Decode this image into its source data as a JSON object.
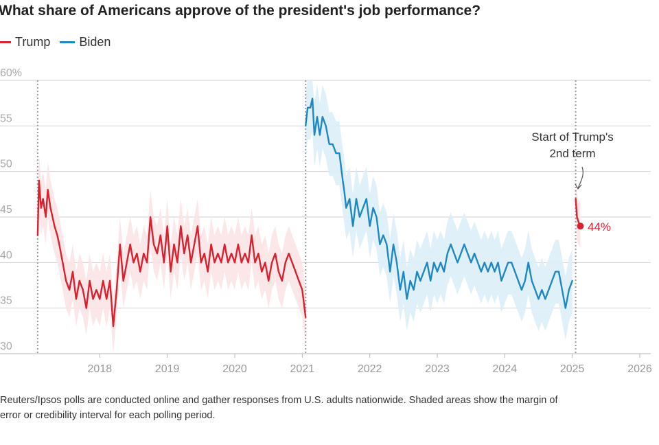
{
  "title": "What share of Americans approve of the president's job performance?",
  "legend": [
    {
      "label": "Trump",
      "color": "#d9202f"
    },
    {
      "label": "Biden",
      "color": "#1f88c2"
    }
  ],
  "footnote": {
    "line1": "Reuters/Ipsos polls are conducted online and gather responses from U.S. adults nationwide. Shaded areas show the margin of",
    "line2": "error or credibility interval for each polling period."
  },
  "annotation": {
    "line1": "Start of Trump's",
    "line2": "2nd term",
    "end_label": "44%"
  },
  "chart_data": {
    "type": "line",
    "title": "What share of Americans approve of the president's job performance?",
    "xlabel": "",
    "ylabel": "",
    "xlim": [
      2017.0,
      2026.0
    ],
    "ylim": [
      30,
      60
    ],
    "y_ticks": [
      60,
      55,
      50,
      45,
      40,
      35,
      30
    ],
    "y_tick_labels": [
      "60%",
      "55",
      "50",
      "45",
      "40",
      "35",
      "30"
    ],
    "x_ticks": [
      2018,
      2019,
      2020,
      2021,
      2022,
      2023,
      2024,
      2025,
      2026
    ],
    "x_tick_labels": [
      "2018",
      "2019",
      "2020",
      "2021",
      "2022",
      "2023",
      "2024",
      "2025",
      "2026"
    ],
    "vertical_markers": [
      2017.08,
      2021.05,
      2025.05
    ],
    "grid": true,
    "series": [
      {
        "name": "Trump",
        "color": "#d9202f",
        "band_color": "#fbe3e5",
        "margin": 3,
        "points": [
          [
            2017.08,
            43
          ],
          [
            2017.1,
            49
          ],
          [
            2017.13,
            46
          ],
          [
            2017.16,
            47
          ],
          [
            2017.2,
            45
          ],
          [
            2017.23,
            48
          ],
          [
            2017.27,
            46
          ],
          [
            2017.3,
            45
          ],
          [
            2017.33,
            44
          ],
          [
            2017.37,
            43
          ],
          [
            2017.4,
            42
          ],
          [
            2017.45,
            40
          ],
          [
            2017.5,
            38
          ],
          [
            2017.55,
            37
          ],
          [
            2017.6,
            39
          ],
          [
            2017.65,
            36
          ],
          [
            2017.7,
            38
          ],
          [
            2017.75,
            37
          ],
          [
            2017.8,
            35
          ],
          [
            2017.85,
            38
          ],
          [
            2017.9,
            36
          ],
          [
            2017.95,
            37
          ],
          [
            2018.0,
            36
          ],
          [
            2018.05,
            38
          ],
          [
            2018.1,
            36
          ],
          [
            2018.15,
            38
          ],
          [
            2018.2,
            33
          ],
          [
            2018.25,
            37
          ],
          [
            2018.3,
            42
          ],
          [
            2018.35,
            38
          ],
          [
            2018.4,
            40
          ],
          [
            2018.45,
            42
          ],
          [
            2018.5,
            40
          ],
          [
            2018.55,
            41
          ],
          [
            2018.6,
            39
          ],
          [
            2018.65,
            41
          ],
          [
            2018.7,
            40
          ],
          [
            2018.75,
            45
          ],
          [
            2018.8,
            42
          ],
          [
            2018.85,
            41
          ],
          [
            2018.9,
            43
          ],
          [
            2018.95,
            40
          ],
          [
            2019.0,
            44
          ],
          [
            2019.05,
            39
          ],
          [
            2019.1,
            42
          ],
          [
            2019.15,
            40
          ],
          [
            2019.2,
            44
          ],
          [
            2019.25,
            41
          ],
          [
            2019.3,
            43
          ],
          [
            2019.35,
            40
          ],
          [
            2019.4,
            42
          ],
          [
            2019.45,
            44
          ],
          [
            2019.5,
            40
          ],
          [
            2019.55,
            41
          ],
          [
            2019.6,
            39
          ],
          [
            2019.65,
            42
          ],
          [
            2019.7,
            40
          ],
          [
            2019.75,
            41
          ],
          [
            2019.8,
            40
          ],
          [
            2019.85,
            42
          ],
          [
            2019.9,
            40
          ],
          [
            2019.95,
            41
          ],
          [
            2020.0,
            40
          ],
          [
            2020.05,
            42
          ],
          [
            2020.1,
            40
          ],
          [
            2020.15,
            41
          ],
          [
            2020.2,
            40
          ],
          [
            2020.25,
            43
          ],
          [
            2020.3,
            40
          ],
          [
            2020.35,
            41
          ],
          [
            2020.4,
            39
          ],
          [
            2020.45,
            40
          ],
          [
            2020.5,
            38
          ],
          [
            2020.55,
            40
          ],
          [
            2020.6,
            41
          ],
          [
            2020.65,
            39
          ],
          [
            2020.7,
            38
          ],
          [
            2020.75,
            40
          ],
          [
            2020.8,
            41
          ],
          [
            2020.85,
            40
          ],
          [
            2020.9,
            39
          ],
          [
            2020.95,
            38
          ],
          [
            2021.0,
            37
          ],
          [
            2021.05,
            34
          ]
        ]
      },
      {
        "name": "Biden",
        "color": "#1f88c2",
        "band_color": "#dceef8",
        "margin": 3.5,
        "points": [
          [
            2021.05,
            55
          ],
          [
            2021.08,
            57
          ],
          [
            2021.12,
            57
          ],
          [
            2021.15,
            58
          ],
          [
            2021.18,
            54
          ],
          [
            2021.22,
            56
          ],
          [
            2021.26,
            54
          ],
          [
            2021.3,
            56
          ],
          [
            2021.35,
            55
          ],
          [
            2021.4,
            53
          ],
          [
            2021.45,
            53
          ],
          [
            2021.5,
            52
          ],
          [
            2021.55,
            52
          ],
          [
            2021.6,
            49
          ],
          [
            2021.62,
            48
          ],
          [
            2021.65,
            46
          ],
          [
            2021.7,
            47
          ],
          [
            2021.75,
            44
          ],
          [
            2021.8,
            47
          ],
          [
            2021.85,
            45
          ],
          [
            2021.9,
            46
          ],
          [
            2021.95,
            47
          ],
          [
            2022.0,
            44
          ],
          [
            2022.05,
            46
          ],
          [
            2022.1,
            45
          ],
          [
            2022.15,
            42
          ],
          [
            2022.2,
            43
          ],
          [
            2022.25,
            42
          ],
          [
            2022.3,
            39
          ],
          [
            2022.35,
            42
          ],
          [
            2022.4,
            40
          ],
          [
            2022.45,
            37
          ],
          [
            2022.5,
            39
          ],
          [
            2022.55,
            36
          ],
          [
            2022.6,
            38
          ],
          [
            2022.65,
            37
          ],
          [
            2022.7,
            39
          ],
          [
            2022.75,
            38
          ],
          [
            2022.8,
            39
          ],
          [
            2022.85,
            40
          ],
          [
            2022.9,
            38
          ],
          [
            2022.95,
            40
          ],
          [
            2023.0,
            39
          ],
          [
            2023.05,
            40
          ],
          [
            2023.1,
            39
          ],
          [
            2023.15,
            41
          ],
          [
            2023.2,
            42
          ],
          [
            2023.25,
            41
          ],
          [
            2023.3,
            40
          ],
          [
            2023.35,
            41
          ],
          [
            2023.4,
            42
          ],
          [
            2023.45,
            41
          ],
          [
            2023.5,
            40
          ],
          [
            2023.55,
            41
          ],
          [
            2023.6,
            40
          ],
          [
            2023.65,
            39
          ],
          [
            2023.7,
            40
          ],
          [
            2023.75,
            39
          ],
          [
            2023.8,
            40
          ],
          [
            2023.85,
            39
          ],
          [
            2023.9,
            40
          ],
          [
            2023.95,
            38
          ],
          [
            2024.0,
            39
          ],
          [
            2024.05,
            40
          ],
          [
            2024.1,
            40
          ],
          [
            2024.15,
            39
          ],
          [
            2024.2,
            38
          ],
          [
            2024.25,
            37
          ],
          [
            2024.3,
            38
          ],
          [
            2024.35,
            40
          ],
          [
            2024.4,
            38
          ],
          [
            2024.45,
            37
          ],
          [
            2024.5,
            36
          ],
          [
            2024.55,
            37
          ],
          [
            2024.6,
            36
          ],
          [
            2024.65,
            37
          ],
          [
            2024.7,
            38
          ],
          [
            2024.75,
            39
          ],
          [
            2024.8,
            39
          ],
          [
            2024.85,
            37
          ],
          [
            2024.9,
            35
          ],
          [
            2024.95,
            37
          ],
          [
            2025.0,
            38
          ]
        ]
      },
      {
        "name": "Trump (2nd term)",
        "color": "#d9202f",
        "band_color": "#fbe3e5",
        "margin": 2.5,
        "points": [
          [
            2025.05,
            47
          ],
          [
            2025.07,
            45
          ],
          [
            2025.09,
            44.5
          ],
          [
            2025.12,
            44
          ]
        ]
      }
    ],
    "end_point": {
      "x": 2025.12,
      "y": 44,
      "label": "44%"
    }
  }
}
